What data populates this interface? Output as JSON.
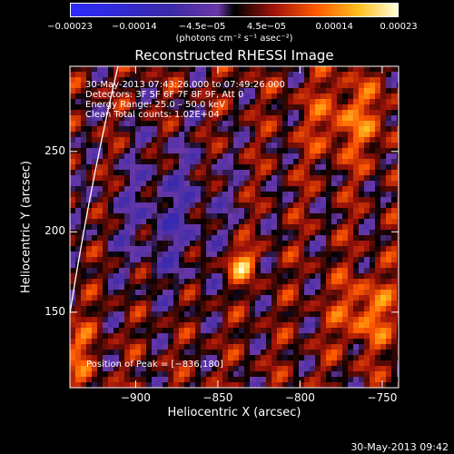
{
  "chart_data": {
    "type": "heatmap",
    "title": "Reconstructed RHESSI Image",
    "xlabel": "Heliocentric X (arcsec)",
    "ylabel": "Heliocentric Y (arcsec)",
    "xlim": [
      -940,
      -740
    ],
    "ylim": [
      103,
      303
    ],
    "xticks": [
      -900,
      -850,
      -800,
      -750
    ],
    "xticklabels": [
      "−900",
      "−850",
      "−800",
      "−750"
    ],
    "yticks": [
      150,
      200,
      250
    ],
    "yticklabels": [
      "150",
      "200",
      "250"
    ],
    "colorbar": {
      "range": [
        -0.00023,
        0.00023
      ],
      "ticks": [
        -0.00023,
        -0.00014,
        -4.5e-05,
        4.5e-05,
        0.00014,
        0.00023
      ],
      "ticklabels": [
        "−0.00023",
        "−0.00014",
        "−4.5e−05",
        "4.5e−05",
        "0.00014",
        "0.00023"
      ],
      "unit_label": "(photons cm⁻² s⁻¹ asec⁻²)"
    },
    "peak_position": [
      -836,
      180
    ],
    "annotations": [
      "30-May-2013 07:43:26.000 to 07:49:26.000",
      "Detectors: 3F 5F 6F 7F 8F 9F, Att 0",
      "Energy Range: 25.0 – 50.0 keV",
      "Clean    Total counts: 1.02E+04",
      "Position of Peak = [−836,180]"
    ],
    "grid": false
  },
  "footer": {
    "timestamp": "30-May-2013 09:42"
  },
  "colors": {
    "background": "#000000",
    "limb": "#ffffff"
  },
  "colormap_stops": [
    {
      "v": 0.0,
      "c": "#2b2bff"
    },
    {
      "v": 0.3,
      "c": "#3a2aa8"
    },
    {
      "v": 0.45,
      "c": "#6a38a8"
    },
    {
      "v": 0.5,
      "c": "#000000"
    },
    {
      "v": 0.62,
      "c": "#a0140a"
    },
    {
      "v": 0.75,
      "c": "#ff5a00"
    },
    {
      "v": 0.88,
      "c": "#ffc020"
    },
    {
      "v": 1.0,
      "c": "#ffffe0"
    }
  ]
}
